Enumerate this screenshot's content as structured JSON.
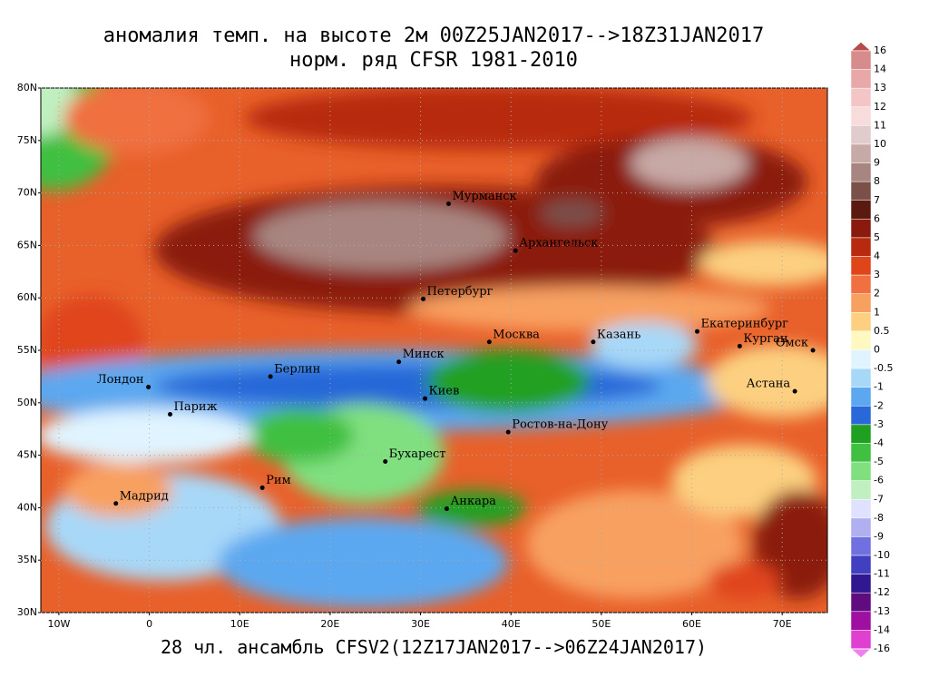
{
  "map": {
    "title": "аномалия темп. на высоте 2м 00Z25JAN2017-->18Z31JAN2017",
    "subtitle": "норм. ряд CFSR 1981-2010",
    "footer": "28 чл. ансамбль CFSV2(12Z17JAN2017-->06Z24JAN2017)",
    "lon_lim": [
      -12,
      75
    ],
    "lat_lim": [
      30,
      80
    ],
    "grid": true,
    "lat_ticks": [
      {
        "value": 30,
        "label": "30N"
      },
      {
        "value": 35,
        "label": "35N"
      },
      {
        "value": 40,
        "label": "40N"
      },
      {
        "value": 45,
        "label": "45N"
      },
      {
        "value": 50,
        "label": "50N"
      },
      {
        "value": 55,
        "label": "55N"
      },
      {
        "value": 60,
        "label": "60N"
      },
      {
        "value": 65,
        "label": "65N"
      },
      {
        "value": 70,
        "label": "70N"
      },
      {
        "value": 75,
        "label": "75N"
      },
      {
        "value": 80,
        "label": "80N"
      }
    ],
    "lon_ticks": [
      {
        "value": -10,
        "label": "10W"
      },
      0,
      {
        "value": 10,
        "label": "10E"
      },
      {
        "value": 20,
        "label": "20E"
      },
      {
        "value": 30,
        "label": "30E"
      },
      {
        "value": 40,
        "label": "40E"
      },
      {
        "value": 50,
        "label": "50E"
      },
      {
        "value": 60,
        "label": "60E"
      },
      {
        "value": 70,
        "label": "70E"
      }
    ],
    "cities": [
      {
        "name": "Мурманск",
        "lon": 33.1,
        "lat": 68.97
      },
      {
        "name": "Архангельск",
        "lon": 40.5,
        "lat": 64.5
      },
      {
        "name": "Петербург",
        "lon": 30.3,
        "lat": 59.9
      },
      {
        "name": "Москва",
        "lon": 37.6,
        "lat": 55.8
      },
      {
        "name": "Казань",
        "lon": 49.1,
        "lat": 55.8
      },
      {
        "name": "Екатеринбург",
        "lon": 60.6,
        "lat": 56.8
      },
      {
        "name": "Курган",
        "lon": 65.3,
        "lat": 55.4
      },
      {
        "name": "Омск",
        "lon": 73.4,
        "lat": 55.0
      },
      {
        "name": "Астана",
        "lon": 71.4,
        "lat": 51.1
      },
      {
        "name": "Минск",
        "lon": 27.6,
        "lat": 53.9
      },
      {
        "name": "Берлин",
        "lon": 13.4,
        "lat": 52.5
      },
      {
        "name": "Лондон",
        "lon": -0.1,
        "lat": 51.5
      },
      {
        "name": "Париж",
        "lon": 2.3,
        "lat": 48.9
      },
      {
        "name": "Киев",
        "lon": 30.5,
        "lat": 50.4
      },
      {
        "name": "Ростов-на-Дону",
        "lon": 39.7,
        "lat": 47.2
      },
      {
        "name": "Бухарест",
        "lon": 26.1,
        "lat": 44.4
      },
      {
        "name": "Рим",
        "lon": 12.5,
        "lat": 41.9
      },
      {
        "name": "Мадрид",
        "lon": -3.7,
        "lat": 40.4
      },
      {
        "name": "Анкара",
        "lon": 32.9,
        "lat": 39.9
      }
    ],
    "colorbar": {
      "levels": [
        16,
        14,
        13,
        12,
        11,
        10,
        9,
        8,
        7,
        6,
        5,
        4,
        3,
        2,
        1,
        0.5,
        0,
        -0.5,
        -1,
        -2,
        -3,
        -4,
        -5,
        -6,
        -7,
        -8,
        -9,
        -10,
        -11,
        -12,
        -13,
        -14,
        -16
      ],
      "colors": [
        "#b84a4a",
        "#d88b8b",
        "#e8a8a8",
        "#f3c5c5",
        "#f8dcdc",
        "#e0cccc",
        "#c7a9a5",
        "#a88580",
        "#7a5048",
        "#5a1a10",
        "#8b1a0e",
        "#b82a10",
        "#e0451a",
        "#f07040",
        "#f8a060",
        "#fcd080",
        "#fff8c0",
        "#e0f4ff",
        "#a8d8f8",
        "#5ca8f0",
        "#2868d8",
        "#20a020",
        "#40c040",
        "#80e080",
        "#c0f0c0",
        "#e0e0ff",
        "#b0b0f0",
        "#7070e0",
        "#4040c0",
        "#301890",
        "#600c80",
        "#a010a0",
        "#e040d0",
        "#f080f0"
      ]
    }
  }
}
